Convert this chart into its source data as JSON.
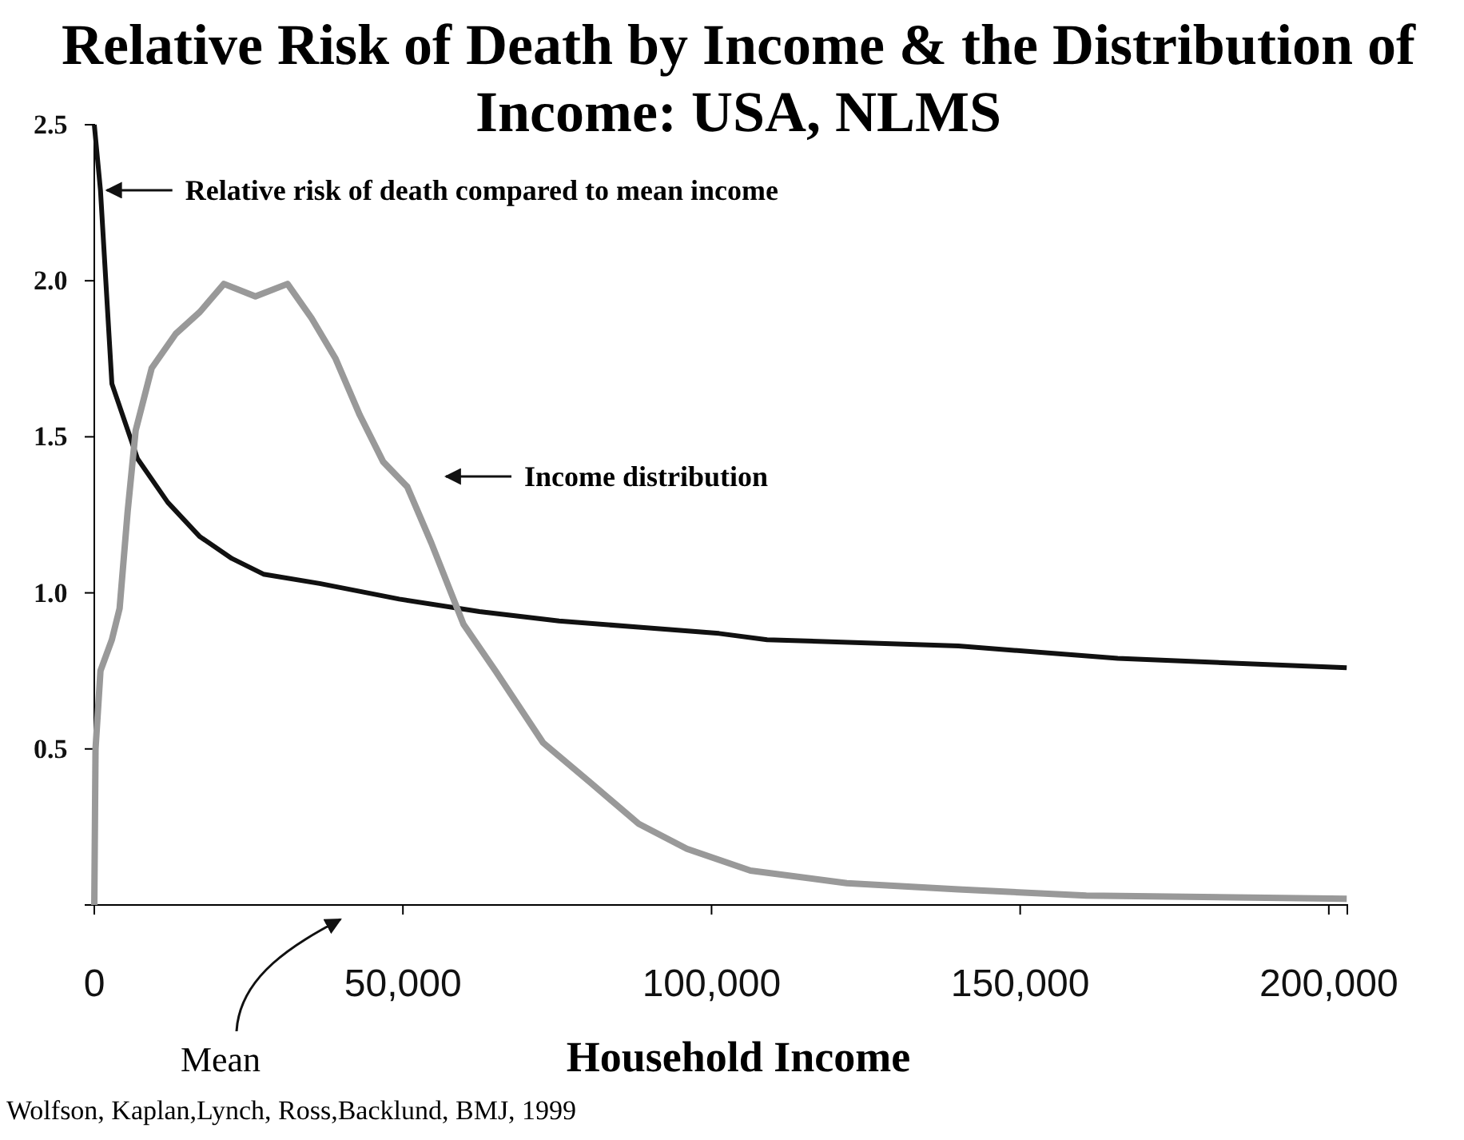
{
  "chart_data": {
    "type": "line",
    "title": "Relative Risk of Death by Income & the Distribution of Income: USA, NLMS",
    "xlabel": "Household Income",
    "x": [
      0,
      1000,
      2850,
      7000,
      11900,
      17100,
      22300,
      27400,
      36500,
      49400,
      62400,
      75300,
      88200,
      101200,
      109000,
      140000,
      165800,
      202900
    ],
    "series": [
      {
        "color": "#111111",
        "values": [
          2.5,
          2.29,
          1.67,
          1.43,
          1.29,
          1.18,
          1.11,
          1.06,
          1.03,
          0.98,
          0.94,
          0.91,
          0.89,
          0.87,
          0.85,
          0.83,
          0.79,
          0.76
        ]
      },
      {
        "color": "#999999",
        "x": [
          0,
          200,
          1000,
          2850,
          4100,
          5400,
          6700,
          9300,
          13200,
          17100,
          21000,
          26100,
          31300,
          35200,
          39100,
          43000,
          46800,
          50700,
          54600,
          59800,
          65000,
          72700,
          80500,
          88200,
          96000,
          106300,
          121900,
          140000,
          160700,
          202900
        ],
        "values": [
          0,
          0.5,
          0.75,
          0.85,
          0.95,
          1.26,
          1.52,
          1.72,
          1.83,
          1.9,
          1.99,
          1.95,
          1.99,
          1.88,
          1.75,
          1.57,
          1.42,
          1.34,
          1.16,
          0.9,
          0.75,
          0.52,
          0.39,
          0.26,
          0.18,
          0.11,
          0.07,
          0.05,
          0.03,
          0.02
        ]
      }
    ],
    "xlim": [
      0,
      203000
    ],
    "xticks": [
      0,
      {
        "value": 50000,
        "label": "50,000"
      },
      {
        "value": 100000,
        "label": "100,000"
      },
      {
        "value": 150000,
        "label": "150,000"
      },
      {
        "value": 200000,
        "label": "200,000"
      }
    ],
    "ylim": [
      0,
      2.5
    ],
    "yticks": [
      {
        "value": 0,
        "label": null
      },
      {
        "value": 0.5,
        "label": "0.5"
      },
      {
        "value": 1,
        "label": "1.0"
      },
      {
        "value": 1.5,
        "label": "1.5"
      },
      {
        "value": 2,
        "label": "2.0"
      },
      {
        "value": 2.5,
        "label": "2.5"
      }
    ],
    "marker": "none",
    "line_style": "solid",
    "grid": false,
    "annotations": [
      {
        "text": "Relative risk of death compared to mean income",
        "x": 1000,
        "y": 2.29
      },
      "Income distribution",
      "Mean",
      "Wolfson,  Kaplan,Lynch, Ross,Backlund, BMJ, 1999"
    ]
  }
}
